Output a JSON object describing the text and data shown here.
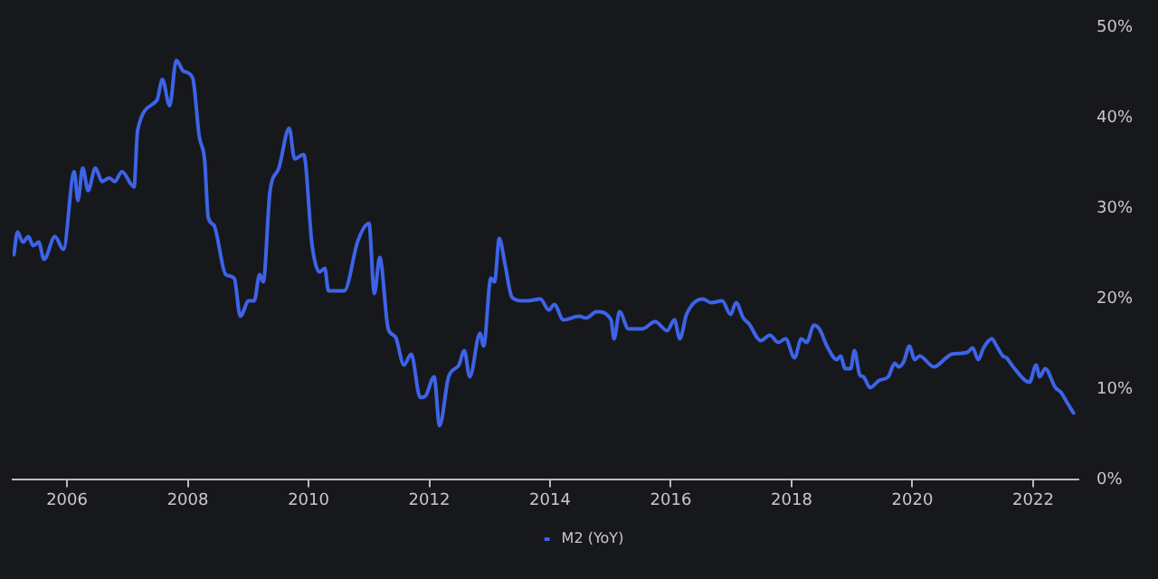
{
  "chart_data": {
    "type": "line",
    "xlim": [
      2005.1,
      2022.75
    ],
    "xticks": [
      2006,
      2008,
      2010,
      2012,
      2014,
      2016,
      2018,
      2020,
      2022
    ],
    "ylim": [
      0,
      50
    ],
    "yticks": [
      {
        "value": 0,
        "label": "0%"
      },
      {
        "value": 10,
        "label": "10%"
      },
      {
        "value": 20,
        "label": "20%"
      },
      {
        "value": 30,
        "label": "30%"
      },
      {
        "value": 40,
        "label": "40%"
      },
      {
        "value": 50,
        "label": "50%"
      }
    ],
    "grid": false,
    "legend": "bottom",
    "marker": "none",
    "line_style": "solid",
    "series": [
      {
        "name": "M2 (YoY)",
        "color": "#3d63e8",
        "x": [
          2005.12,
          2005.18,
          2005.27,
          2005.36,
          2005.44,
          2005.53,
          2005.62,
          2005.8,
          2005.94,
          2006.12,
          2006.18,
          2006.26,
          2006.35,
          2006.47,
          2006.58,
          2006.7,
          2006.79,
          2006.91,
          2007.11,
          2007.17,
          2007.49,
          2007.58,
          2007.7,
          2007.81,
          2007.93,
          2008.08,
          2008.19,
          2008.28,
          2008.34,
          2008.43,
          2008.63,
          2008.77,
          2008.87,
          2009.01,
          2009.1,
          2009.19,
          2009.25,
          2009.36,
          2009.51,
          2009.68,
          2009.77,
          2009.92,
          2010.06,
          2010.18,
          2010.27,
          2010.33,
          2010.59,
          2010.82,
          2011.0,
          2011.09,
          2011.18,
          2011.32,
          2011.44,
          2011.58,
          2011.7,
          2011.85,
          2011.94,
          2012.08,
          2012.17,
          2012.32,
          2012.49,
          2012.58,
          2012.67,
          2012.84,
          2012.9,
          2013.02,
          2013.08,
          2013.16,
          2013.25,
          2013.37,
          2013.54,
          2013.63,
          2013.84,
          2013.98,
          2014.07,
          2014.22,
          2014.48,
          2014.6,
          2014.77,
          2015.01,
          2015.06,
          2015.15,
          2015.3,
          2015.53,
          2015.74,
          2015.94,
          2016.06,
          2016.15,
          2016.26,
          2016.53,
          2016.67,
          2016.85,
          2016.99,
          2017.08,
          2017.2,
          2017.29,
          2017.49,
          2017.64,
          2017.78,
          2017.9,
          2018.05,
          2018.16,
          2018.25,
          2018.37,
          2018.46,
          2018.6,
          2018.75,
          2018.81,
          2018.89,
          2018.98,
          2019.04,
          2019.13,
          2019.19,
          2019.3,
          2019.45,
          2019.6,
          2019.71,
          2019.77,
          2019.86,
          2019.95,
          2020.04,
          2020.12,
          2020.36,
          2020.56,
          2020.65,
          2020.91,
          2021.0,
          2021.09,
          2021.18,
          2021.32,
          2021.38,
          2021.5,
          2021.56,
          2021.67,
          2021.94,
          2022.05,
          2022.11,
          2022.2,
          2022.37,
          2022.46,
          2022.55,
          2022.67
        ],
        "values": [
          24.9,
          27.4,
          26.3,
          26.9,
          25.9,
          26.3,
          24.4,
          26.9,
          25.5,
          34.1,
          30.9,
          34.5,
          32.0,
          34.5,
          33.0,
          33.4,
          33.0,
          34.1,
          32.4,
          38.7,
          42.0,
          44.3,
          41.4,
          46.4,
          45.2,
          44.5,
          38.0,
          35.3,
          29.0,
          28.2,
          22.7,
          22.3,
          18.1,
          19.8,
          19.8,
          22.7,
          21.9,
          31.8,
          34.5,
          38.9,
          35.5,
          36.0,
          25.9,
          23.0,
          23.4,
          20.9,
          20.9,
          26.5,
          28.4,
          20.6,
          24.6,
          16.7,
          15.8,
          12.7,
          13.9,
          9.1,
          9.3,
          11.4,
          6.0,
          11.4,
          12.7,
          14.3,
          11.4,
          16.2,
          14.8,
          22.3,
          21.9,
          26.7,
          24.0,
          20.2,
          19.8,
          19.8,
          20.0,
          18.8,
          19.4,
          17.7,
          18.1,
          17.9,
          18.6,
          17.7,
          15.6,
          18.6,
          16.7,
          16.7,
          17.5,
          16.5,
          17.7,
          15.6,
          18.3,
          20.0,
          19.6,
          19.8,
          18.3,
          19.6,
          17.9,
          17.3,
          15.4,
          16.0,
          15.2,
          15.6,
          13.5,
          15.6,
          15.2,
          17.1,
          16.7,
          14.6,
          13.3,
          13.7,
          12.3,
          12.3,
          14.3,
          11.6,
          11.4,
          10.2,
          11.0,
          11.4,
          12.9,
          12.5,
          13.1,
          14.8,
          13.3,
          13.7,
          12.5,
          13.5,
          13.9,
          14.1,
          14.6,
          13.3,
          14.6,
          15.6,
          15.0,
          13.7,
          13.5,
          12.5,
          10.8,
          12.7,
          11.4,
          12.3,
          10.2,
          9.7,
          8.7,
          7.4
        ]
      }
    ]
  }
}
